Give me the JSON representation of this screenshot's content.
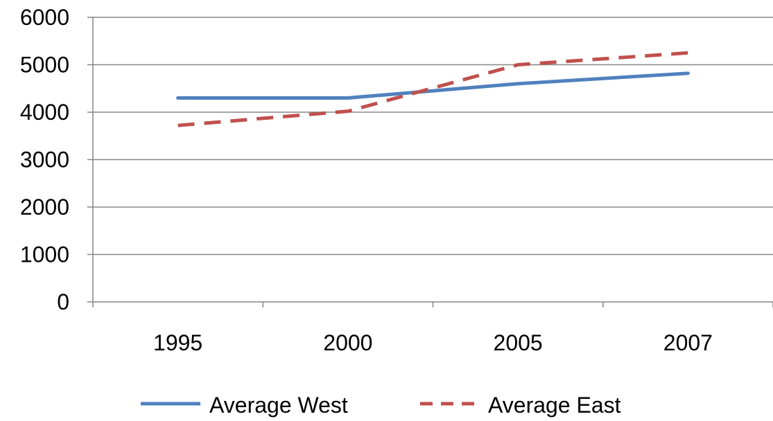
{
  "chart_data": {
    "type": "line",
    "categories": [
      "1995",
      "2000",
      "2005",
      "2007"
    ],
    "series": [
      {
        "name": "Average West",
        "values": [
          4300,
          4300,
          4600,
          4820
        ],
        "color": "#4F81BD",
        "line_style": "solid"
      },
      {
        "name": "Average East",
        "values": [
          3720,
          4020,
          5000,
          5250
        ],
        "color": "#C0504D",
        "line_style": "dashed"
      }
    ],
    "ylim": [
      0,
      6000
    ],
    "yticks": [
      "0",
      "1000",
      "2000",
      "3000",
      "4000",
      "5000",
      "6000"
    ],
    "grid": true,
    "legend_position": "bottom"
  }
}
